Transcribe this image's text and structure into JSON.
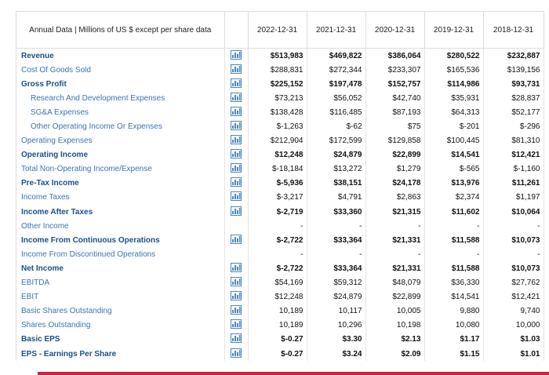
{
  "table": {
    "header": {
      "title": "Annual Data | Millions of US $ except per share data",
      "columns": [
        "2022-12-31",
        "2021-12-31",
        "2020-12-31",
        "2019-12-31",
        "2018-12-31"
      ]
    },
    "rows": [
      {
        "label": "Revenue",
        "bold": true,
        "indent": false,
        "chart": true,
        "values": [
          "$513,983",
          "$469,822",
          "$386,064",
          "$280,522",
          "$232,887"
        ]
      },
      {
        "label": "Cost Of Goods Sold",
        "bold": false,
        "indent": false,
        "chart": true,
        "values": [
          "$288,831",
          "$272,344",
          "$233,307",
          "$165,536",
          "$139,156"
        ]
      },
      {
        "label": "Gross Profit",
        "bold": true,
        "indent": false,
        "chart": true,
        "values": [
          "$225,152",
          "$197,478",
          "$152,757",
          "$114,986",
          "$93,731"
        ]
      },
      {
        "label": "Research And Development Expenses",
        "bold": false,
        "indent": true,
        "chart": true,
        "values": [
          "$73,213",
          "$56,052",
          "$42,740",
          "$35,931",
          "$28,837"
        ]
      },
      {
        "label": "SG&A Expenses",
        "bold": false,
        "indent": true,
        "chart": true,
        "values": [
          "$138,428",
          "$116,485",
          "$87,193",
          "$64,313",
          "$52,177"
        ]
      },
      {
        "label": "Other Operating Income Or Expenses",
        "bold": false,
        "indent": true,
        "chart": true,
        "values": [
          "$-1,263",
          "$-62",
          "$75",
          "$-201",
          "$-296"
        ]
      },
      {
        "label": "Operating Expenses",
        "bold": false,
        "indent": false,
        "chart": true,
        "values": [
          "$212,904",
          "$172,599",
          "$129,858",
          "$100,445",
          "$81,310"
        ]
      },
      {
        "label": "Operating Income",
        "bold": true,
        "indent": false,
        "chart": true,
        "values": [
          "$12,248",
          "$24,879",
          "$22,899",
          "$14,541",
          "$12,421"
        ]
      },
      {
        "label": "Total Non-Operating Income/Expense",
        "bold": false,
        "indent": false,
        "chart": true,
        "values": [
          "$-18,184",
          "$13,272",
          "$1,279",
          "$-565",
          "$-1,160"
        ]
      },
      {
        "label": "Pre-Tax Income",
        "bold": true,
        "indent": false,
        "chart": true,
        "values": [
          "$-5,936",
          "$38,151",
          "$24,178",
          "$13,976",
          "$11,261"
        ]
      },
      {
        "label": "Income Taxes",
        "bold": false,
        "indent": false,
        "chart": true,
        "values": [
          "$-3,217",
          "$4,791",
          "$2,863",
          "$2,374",
          "$1,197"
        ]
      },
      {
        "label": "Income After Taxes",
        "bold": true,
        "indent": false,
        "chart": true,
        "values": [
          "$-2,719",
          "$33,360",
          "$21,315",
          "$11,602",
          "$10,064"
        ]
      },
      {
        "label": "Other Income",
        "bold": false,
        "indent": false,
        "chart": false,
        "values": [
          "-",
          "-",
          "-",
          "-",
          "-"
        ]
      },
      {
        "label": "Income From Continuous Operations",
        "bold": true,
        "indent": false,
        "chart": true,
        "values": [
          "$-2,722",
          "$33,364",
          "$21,331",
          "$11,588",
          "$10,073"
        ]
      },
      {
        "label": "Income From Discontinued Operations",
        "bold": false,
        "indent": false,
        "chart": false,
        "values": [
          "-",
          "-",
          "-",
          "-",
          "-"
        ]
      },
      {
        "label": "Net Income",
        "bold": true,
        "indent": false,
        "chart": true,
        "values": [
          "$-2,722",
          "$33,364",
          "$21,331",
          "$11,588",
          "$10,073"
        ]
      },
      {
        "label": "EBITDA",
        "bold": false,
        "indent": false,
        "chart": true,
        "values": [
          "$54,169",
          "$59,312",
          "$48,079",
          "$36,330",
          "$27,762"
        ]
      },
      {
        "label": "EBIT",
        "bold": false,
        "indent": false,
        "chart": true,
        "values": [
          "$12,248",
          "$24,879",
          "$22,899",
          "$14,541",
          "$12,421"
        ]
      },
      {
        "label": "Basic Shares Outstanding",
        "bold": false,
        "indent": false,
        "chart": true,
        "values": [
          "10,189",
          "10,117",
          "10,005",
          "9,880",
          "9,740"
        ]
      },
      {
        "label": "Shares Outstanding",
        "bold": false,
        "indent": false,
        "chart": true,
        "values": [
          "10,189",
          "10,296",
          "10,198",
          "10,080",
          "10,000"
        ]
      },
      {
        "label": "Basic EPS",
        "bold": true,
        "indent": false,
        "chart": true,
        "values": [
          "$-0.27",
          "$3.30",
          "$2.13",
          "$1.17",
          "$1.03"
        ]
      },
      {
        "label": "EPS - Earnings Per Share",
        "bold": true,
        "indent": false,
        "chart": true,
        "values": [
          "$-0.27",
          "$3.24",
          "$2.09",
          "$1.15",
          "$1.01"
        ]
      }
    ]
  }
}
